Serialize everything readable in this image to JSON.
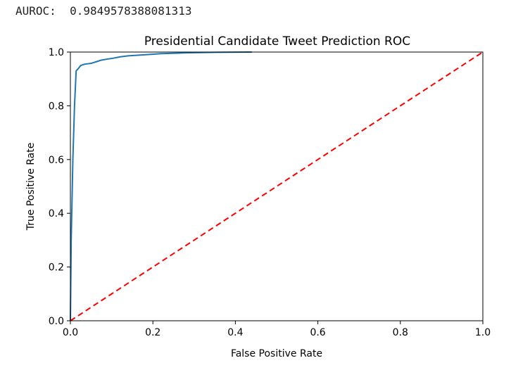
{
  "output": {
    "label": "AUROC:",
    "value": "0.9849578388081313"
  },
  "chart_data": {
    "type": "line",
    "title": "Presidential Candidate Tweet Prediction ROC",
    "xlabel": "False Positive Rate",
    "ylabel": "True Positive Rate",
    "xlim": [
      0,
      1
    ],
    "ylim": [
      0,
      1
    ],
    "xticks": [
      "0.0",
      "0.2",
      "0.4",
      "0.6",
      "0.8",
      "1.0"
    ],
    "yticks": [
      "0.0",
      "0.2",
      "0.4",
      "0.6",
      "0.8",
      "1.0"
    ],
    "grid": false,
    "series": [
      {
        "color": "#1f77b4",
        "style": "solid",
        "x": [
          0.0,
          0.002,
          0.006,
          0.01,
          0.014,
          0.02,
          0.025,
          0.035,
          0.05,
          0.065,
          0.075,
          0.09,
          0.1,
          0.12,
          0.14,
          0.18,
          0.22,
          0.28,
          0.35,
          0.44
        ],
        "y": [
          0.0,
          0.3,
          0.6,
          0.8,
          0.93,
          0.94,
          0.95,
          0.955,
          0.958,
          0.965,
          0.97,
          0.974,
          0.976,
          0.982,
          0.986,
          0.99,
          0.994,
          0.997,
          0.999,
          1.0
        ]
      },
      {
        "color": "#ff0000",
        "style": "dashed",
        "x": [
          0,
          1
        ],
        "y": [
          0,
          1
        ]
      }
    ]
  }
}
